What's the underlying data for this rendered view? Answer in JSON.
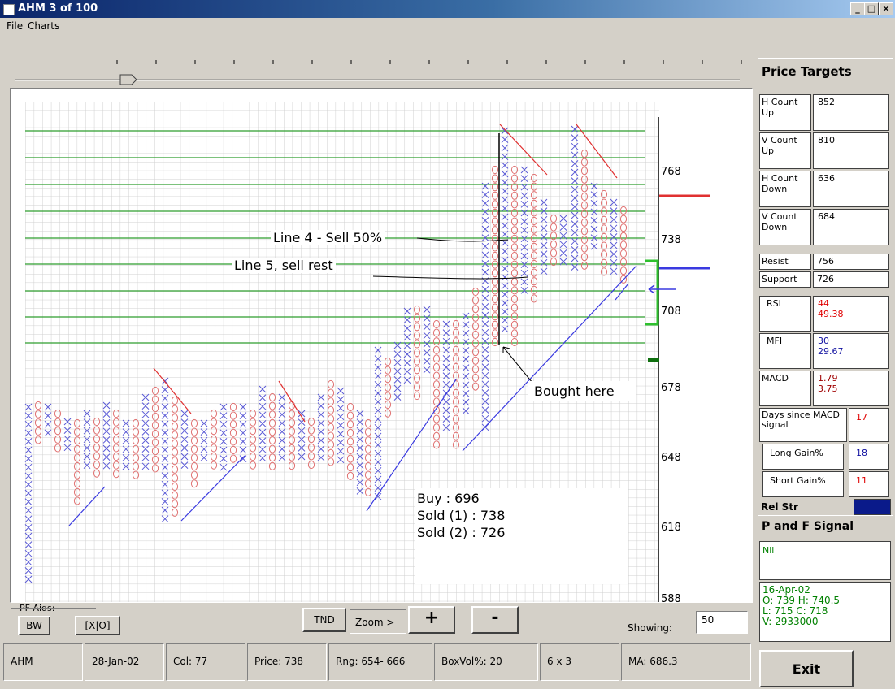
{
  "window": {
    "title": "AHM   3 of 100",
    "min_label": "_",
    "max_label": "□",
    "close_label": "×"
  },
  "menu": {
    "file": "File",
    "charts": "Charts"
  },
  "chart_data": {
    "type": "point-and-figure",
    "y_ticks": [
      "768",
      "738",
      "708",
      "678",
      "648",
      "618",
      "588"
    ],
    "annotations": {
      "line4": "Line 4 - Sell 50%",
      "line5": "Line 5, sell rest",
      "bought": "Bought here",
      "buy": "Buy : 696",
      "sold1": "Sold (1) : 738",
      "sold2": "Sold (2) : 726"
    },
    "colors": {
      "x_mark": "#5a5ad6",
      "o_mark": "#e07070",
      "hline": "#2e9e2e",
      "trend_up": "#3a3ae0",
      "trend_down": "#e03030"
    }
  },
  "price_targets": {
    "header": "Price Targets",
    "rows": [
      {
        "label": "H Count Up",
        "value": "852"
      },
      {
        "label": "V Count Up",
        "value": "810"
      },
      {
        "label": "H Count Down",
        "value": "636"
      },
      {
        "label": "V Count Down",
        "value": "684"
      }
    ]
  },
  "levels": {
    "resist_label": "Resist",
    "resist": "756",
    "support_label": "Support",
    "support": "726"
  },
  "indicators": {
    "rsi_label": "RSI",
    "rsi1": "44",
    "rsi2": "49.38",
    "mfi_label": "MFI",
    "mfi1": "30",
    "mfi2": "29.67",
    "macd_label": "MACD",
    "macd1": "1.79",
    "macd2": "3.75",
    "days_label": "Days since MACD signal",
    "days": "17",
    "long_label": "Long Gain%",
    "long": "18",
    "short_label": "Short Gain%",
    "short": "11",
    "relstr_label": "Rel Str"
  },
  "signal": {
    "header": "P and  F Signal",
    "value": "Nil",
    "date": "16-Apr-02",
    "line_o": "O:  739 H:  740.5",
    "line_l": "L:  715 C:  718",
    "line_v": "V:  2933000"
  },
  "toolbar": {
    "pf_aids": "PF Aids:",
    "bw": "BW",
    "xo": "[X|O]",
    "tnd": "TND",
    "zoom": "Zoom >",
    "plus": "+",
    "minus": "-",
    "showing_label": "Showing:",
    "showing_value": "50"
  },
  "status": {
    "symbol": "AHM",
    "date": "28-Jan-02",
    "col": "Col:  77",
    "price": "Price:  738",
    "rng": "Rng:  654- 666",
    "boxvol": "BoxVol%:  20",
    "box": "6 x 3",
    "ma": "MA:  686.3"
  },
  "exit": "Exit"
}
